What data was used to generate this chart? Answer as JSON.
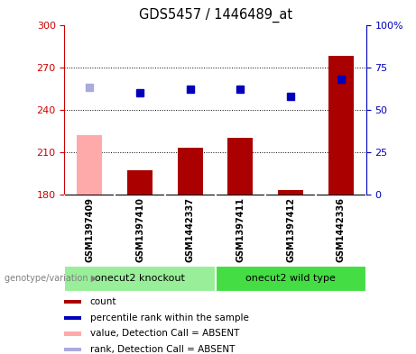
{
  "title": "GDS5457 / 1446489_at",
  "samples": [
    "GSM1397409",
    "GSM1397410",
    "GSM1442337",
    "GSM1397411",
    "GSM1397412",
    "GSM1442336"
  ],
  "count_values": [
    222,
    197,
    213,
    220,
    183,
    278
  ],
  "rank_values": [
    63,
    60,
    62,
    62,
    58,
    68
  ],
  "absent_flags": [
    true,
    false,
    false,
    false,
    false,
    false
  ],
  "bar_color_normal": "#aa0000",
  "bar_color_absent": "#ffaaaa",
  "rank_color_normal": "#0000bb",
  "rank_color_absent": "#aaaadd",
  "ylim_left": [
    180,
    300
  ],
  "ylim_right": [
    0,
    100
  ],
  "yticks_left": [
    180,
    210,
    240,
    270,
    300
  ],
  "yticks_right": [
    0,
    25,
    50,
    75,
    100
  ],
  "ytick_labels_right": [
    "0",
    "25",
    "50",
    "75",
    "100%"
  ],
  "groups": [
    {
      "label": "onecut2 knockout",
      "indices": [
        0,
        1,
        2
      ],
      "color": "#99ee99"
    },
    {
      "label": "onecut2 wild type",
      "indices": [
        3,
        4,
        5
      ],
      "color": "#44dd44"
    }
  ],
  "group_row_label": "genotype/variation",
  "legend_items": [
    {
      "label": "count",
      "color": "#aa0000"
    },
    {
      "label": "percentile rank within the sample",
      "color": "#0000bb"
    },
    {
      "label": "value, Detection Call = ABSENT",
      "color": "#ffaaaa"
    },
    {
      "label": "rank, Detection Call = ABSENT",
      "color": "#aaaadd"
    }
  ],
  "background_color": "#ffffff",
  "tick_color_left": "#cc0000",
  "tick_color_right": "#0000bb",
  "bar_width": 0.5,
  "rank_marker_size": 6,
  "label_bg_color": "#cccccc",
  "label_divider_color": "#ffffff"
}
